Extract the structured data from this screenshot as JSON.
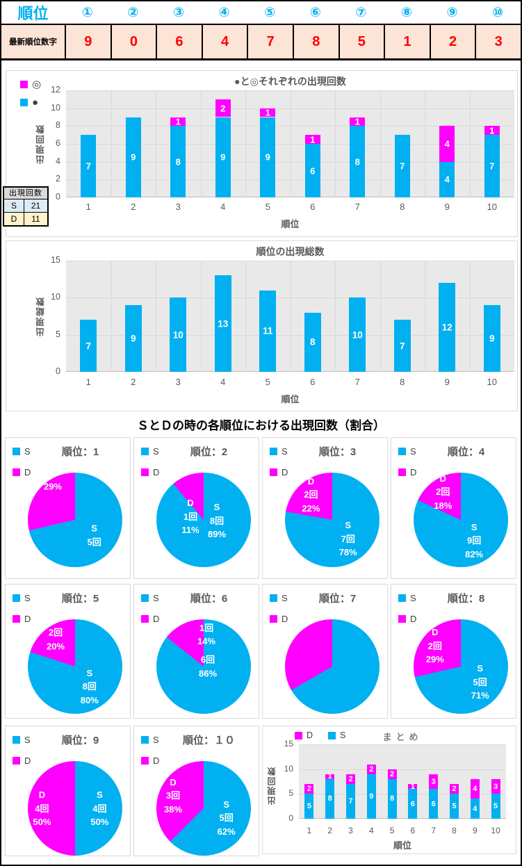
{
  "header_table": {
    "title": "順位",
    "columns": [
      "①",
      "②",
      "③",
      "④",
      "⑤",
      "⑥",
      "⑦",
      "⑧",
      "⑨",
      "⑩"
    ],
    "row_label": "最新順位数字",
    "values": [
      "9",
      "0",
      "6",
      "4",
      "7",
      "8",
      "5",
      "1",
      "2",
      "3"
    ]
  },
  "counts_table": {
    "header": "出現回数",
    "rows": [
      {
        "label": "S",
        "value": "21",
        "bg": "#DDEBF7"
      },
      {
        "label": "D",
        "value": "11",
        "bg": "#FFF2CC"
      }
    ]
  },
  "section_title": "ＳとＤの時の各順位における出現回数（割合）",
  "colors": {
    "cyan": "#00B0F0",
    "magenta": "#FF00FF",
    "red": "#FF0000",
    "peach": "#FCE4D6",
    "header_gray": "#D9D9D9",
    "title_gray": "#595959",
    "plot_bg": "#E9E9E9",
    "gridline": "#D9D9D9",
    "panel_border": "#D9D9D9"
  },
  "chart_data": [
    {
      "id": "marks_stacked_bar",
      "type": "bar",
      "stacked": true,
      "title": "●と◎それぞれの出現回数",
      "xlabel": "順位",
      "ylabel": "出現回数",
      "ylim": [
        0,
        12
      ],
      "yticks": [
        0,
        2,
        4,
        6,
        8,
        10,
        12
      ],
      "categories": [
        "1",
        "2",
        "3",
        "4",
        "5",
        "6",
        "7",
        "8",
        "9",
        "10"
      ],
      "series": [
        {
          "name": "●",
          "color": "#00B0F0",
          "values": [
            7,
            9,
            8,
            9,
            9,
            6,
            8,
            7,
            4,
            7
          ]
        },
        {
          "name": "◎",
          "color": "#FF00FF",
          "values": [
            0,
            0,
            1,
            2,
            1,
            1,
            1,
            0,
            4,
            1
          ]
        }
      ],
      "legend": [
        {
          "label": "◎",
          "color": "#FF00FF"
        },
        {
          "label": "●",
          "color": "#00B0F0"
        }
      ],
      "legend_position": "top-left",
      "grid": true,
      "data_labels": true
    },
    {
      "id": "total_bar",
      "type": "bar",
      "stacked": false,
      "title": "順位の出現総数",
      "xlabel": "順位",
      "ylabel": "出現総数",
      "ylim": [
        0,
        15
      ],
      "yticks": [
        0,
        5,
        10,
        15
      ],
      "categories": [
        "1",
        "2",
        "3",
        "4",
        "5",
        "6",
        "7",
        "8",
        "9",
        "10"
      ],
      "series": [
        {
          "name": "出現総数",
          "color": "#00B0F0",
          "values": [
            7,
            9,
            10,
            13,
            11,
            8,
            10,
            7,
            12,
            9
          ]
        }
      ],
      "legend": [],
      "grid": true,
      "data_labels": true
    },
    {
      "id": "rank_pies",
      "type": "pie",
      "legend": [
        {
          "label": "S",
          "color": "#00B0F0"
        },
        {
          "label": "D",
          "color": "#FF00FF"
        }
      ],
      "pies": [
        {
          "title": "順位：1",
          "s_count": 5,
          "d_count": 2,
          "s_pct": 71,
          "d_pct": 29,
          "s_label_lines": [
            "S",
            "5回"
          ],
          "d_label_lines": [
            "29%"
          ]
        },
        {
          "title": "順位：2",
          "s_count": 8,
          "d_count": 1,
          "s_pct": 89,
          "d_pct": 11,
          "s_label_lines": [
            "S",
            "8回",
            "89%"
          ],
          "d_label_lines": [
            "D",
            "1回",
            "11%"
          ]
        },
        {
          "title": "順位：3",
          "s_count": 7,
          "d_count": 2,
          "s_pct": 78,
          "d_pct": 22,
          "s_label_lines": [
            "S",
            "7回",
            "78%"
          ],
          "d_label_lines": [
            "D",
            "2回",
            "22%"
          ]
        },
        {
          "title": "順位：4",
          "s_count": 9,
          "d_count": 2,
          "s_pct": 82,
          "d_pct": 18,
          "s_label_lines": [
            "S",
            "9回",
            "82%"
          ],
          "d_label_lines": [
            "D",
            "2回",
            "18%"
          ]
        },
        {
          "title": "順位：5",
          "s_count": 8,
          "d_count": 2,
          "s_pct": 80,
          "d_pct": 20,
          "s_label_lines": [
            "S",
            "8回",
            "80%"
          ],
          "d_label_lines": [
            "2回",
            "20%"
          ]
        },
        {
          "title": "順位：6",
          "s_count": 6,
          "d_count": 1,
          "s_pct": 86,
          "d_pct": 14,
          "s_label_lines": [
            "6回",
            "86%"
          ],
          "d_label_lines": [
            "D",
            "1回",
            "14%"
          ]
        },
        {
          "title": "順位：7",
          "s_count": 6,
          "d_count": 3,
          "s_pct": 67,
          "d_pct": 33,
          "s_label_lines": [],
          "d_label_lines": []
        },
        {
          "title": "順位：8",
          "s_count": 5,
          "d_count": 2,
          "s_pct": 71,
          "d_pct": 29,
          "s_label_lines": [
            "S",
            "5回",
            "71%"
          ],
          "d_label_lines": [
            "D",
            "2回",
            "29%"
          ]
        },
        {
          "title": "順位：9",
          "s_count": 4,
          "d_count": 4,
          "s_pct": 50,
          "d_pct": 50,
          "s_label_lines": [
            "S",
            "4回",
            "50%"
          ],
          "d_label_lines": [
            "D",
            "4回",
            "50%"
          ]
        },
        {
          "title": "順位：１０",
          "s_count": 5,
          "d_count": 3,
          "s_pct": 62,
          "d_pct": 38,
          "s_label_lines": [
            "S",
            "5回",
            "62%"
          ],
          "d_label_lines": [
            "D",
            "3回",
            "38%"
          ]
        }
      ]
    },
    {
      "id": "summary_stacked_bar",
      "type": "bar",
      "stacked": true,
      "title": "まとめ",
      "xlabel": "順位",
      "ylabel": "出現回数",
      "ylim": [
        0,
        15
      ],
      "yticks": [
        0,
        5,
        10,
        15
      ],
      "categories": [
        "1",
        "2",
        "3",
        "4",
        "5",
        "6",
        "7",
        "8",
        "9",
        "10"
      ],
      "series": [
        {
          "name": "S",
          "color": "#00B0F0",
          "values": [
            5,
            8,
            7,
            9,
            8,
            6,
            6,
            5,
            4,
            5
          ]
        },
        {
          "name": "D",
          "color": "#FF00FF",
          "values": [
            2,
            1,
            2,
            2,
            2,
            1,
            3,
            2,
            4,
            3
          ]
        }
      ],
      "legend": [
        {
          "label": "D",
          "color": "#FF00FF"
        },
        {
          "label": "S",
          "color": "#00B0F0"
        }
      ],
      "legend_position": "top-center",
      "grid": true,
      "data_labels": true
    }
  ]
}
